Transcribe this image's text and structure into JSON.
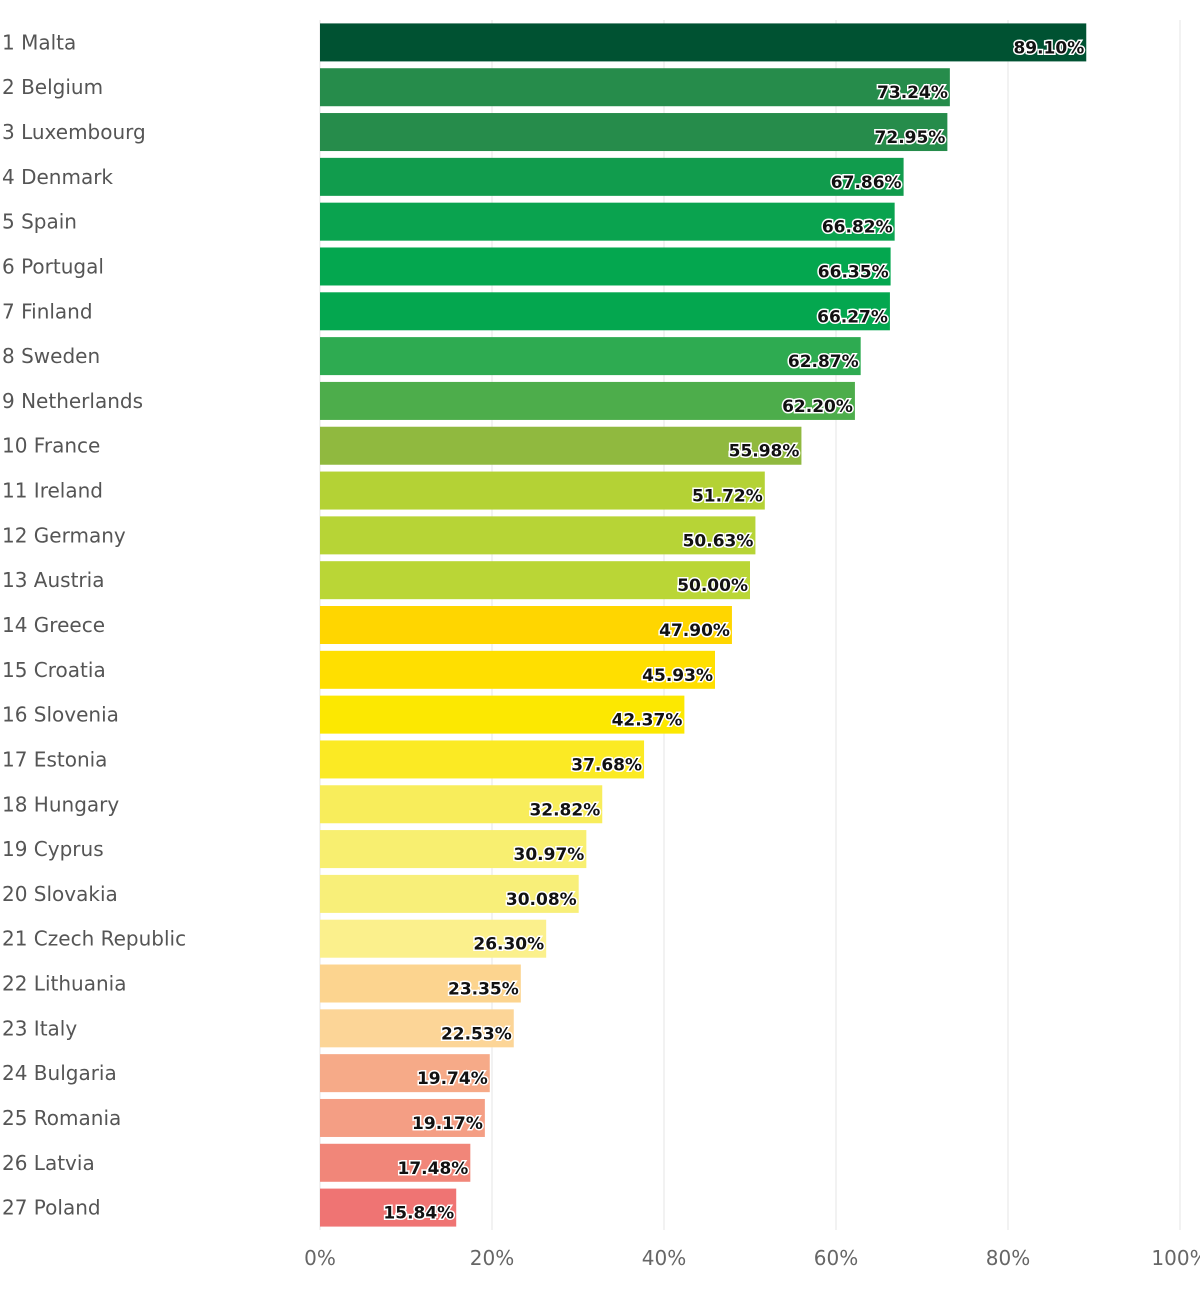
{
  "chart_data": {
    "type": "bar",
    "orientation": "horizontal",
    "title": "",
    "xlabel": "",
    "ylabel": "",
    "xlim": [
      0,
      100
    ],
    "x_ticks": [
      0,
      20,
      40,
      60,
      80,
      100
    ],
    "x_tick_labels": [
      "0%",
      "20%",
      "40%",
      "60%",
      "80%",
      "100%"
    ],
    "grid": true,
    "categories": [
      "1 Malta",
      "2 Belgium",
      "3 Luxembourg",
      "4 Denmark",
      "5 Spain",
      "6 Portugal",
      "7 Finland",
      "8 Sweden",
      "9 Netherlands",
      "10 France",
      "11 Ireland",
      "12 Germany",
      "13 Austria",
      "14 Greece",
      "15 Croatia",
      "16 Slovenia",
      "17 Estonia",
      "18 Hungary",
      "19 Cyprus",
      "20 Slovakia",
      "21 Czech Republic",
      "22 Lithuania",
      "23 Italy",
      "24 Bulgaria",
      "25 Romania",
      "26 Latvia",
      "27 Poland"
    ],
    "values": [
      89.1,
      73.24,
      72.95,
      67.86,
      66.82,
      66.35,
      66.27,
      62.87,
      62.2,
      55.98,
      51.72,
      50.63,
      50.0,
      47.9,
      45.93,
      42.37,
      37.68,
      32.82,
      30.97,
      30.08,
      26.3,
      23.35,
      22.53,
      19.74,
      19.17,
      17.48,
      15.84
    ],
    "value_labels": [
      "89.10%",
      "73.24%",
      "72.95%",
      "67.86%",
      "66.82%",
      "66.35%",
      "66.27%",
      "62.87%",
      "62.20%",
      "55.98%",
      "51.72%",
      "50.63%",
      "50.00%",
      "47.90%",
      "45.93%",
      "42.37%",
      "37.68%",
      "32.82%",
      "30.97%",
      "30.08%",
      "26.30%",
      "23.35%",
      "22.53%",
      "19.74%",
      "19.17%",
      "17.48%",
      "15.84%"
    ],
    "colors": [
      "#005232",
      "#268c4b",
      "#268c4b",
      "#119c4d",
      "#0aa34f",
      "#04a74f",
      "#04a74f",
      "#2eab51",
      "#4dad4b",
      "#90b93f",
      "#b4d235",
      "#b7d436",
      "#bad636",
      "#ffd600",
      "#ffdf00",
      "#fce801",
      "#fbea24",
      "#f8ed5b",
      "#f8ef70",
      "#f8ef79",
      "#fbf08c",
      "#fcd48f",
      "#fcd597",
      "#f6aa88",
      "#f49e84",
      "#f18679",
      "#ef7473"
    ]
  }
}
